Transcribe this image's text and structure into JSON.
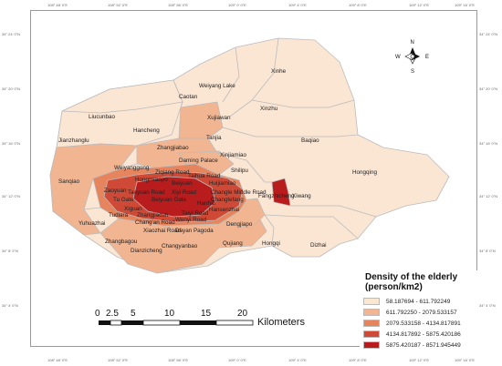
{
  "coordinates": {
    "top": [
      "108° 48' 0\"E",
      "108° 52' 0\"E",
      "108° 56' 0\"E",
      "109° 0' 0\"E",
      "109° 4' 0\"E",
      "109° 8' 0\"E",
      "109° 12' 0\"E",
      "109° 16' 0\"E"
    ],
    "bottom": [
      "108° 48' 0\"E",
      "108° 52' 0\"E",
      "108° 56' 0\"E",
      "109° 0' 0\"E",
      "109° 4' 0\"E",
      "109° 8' 0\"E",
      "109° 12' 0\"E",
      "109° 16' 0\"E"
    ],
    "left": [
      "34° 24' 0\"N",
      "34° 20' 0\"N",
      "34° 16' 0\"N",
      "34° 12' 0\"N",
      "34° 8' 0\"N",
      "34° 4' 0\"N"
    ],
    "right": [
      "34° 24' 0\"N",
      "34° 20' 0\"N",
      "34° 16' 0\"N",
      "34° 12' 0\"N",
      "34° 8' 0\"N",
      "34° 4' 0\"N"
    ]
  },
  "map": {
    "colors": {
      "c1": "#fbe6d4",
      "c2": "#f2b591",
      "c3": "#e5845d",
      "c4": "#cf4a36",
      "c5": "#b81c1c",
      "boundary": "#bbbbbb"
    },
    "labels": [
      {
        "text": "Xinhe"
      },
      {
        "text": "Weiyang Lake"
      },
      {
        "text": "Caotan"
      },
      {
        "text": "Xinzhu"
      },
      {
        "text": "Liucunbao"
      },
      {
        "text": "Xujiawan"
      },
      {
        "text": "Hancheng"
      },
      {
        "text": "Tanjia"
      },
      {
        "text": "Baqiao"
      },
      {
        "text": "Jianzhanglu"
      },
      {
        "text": "Zhangjiabao"
      },
      {
        "text": "Xinjiamiao"
      },
      {
        "text": "Hongqing"
      },
      {
        "text": "Daming Palace"
      },
      {
        "text": "Shilipu"
      },
      {
        "text": "Weiyanggong"
      },
      {
        "text": "Ziqiang Road"
      },
      {
        "text": "Taihua Road"
      },
      {
        "text": "Sanqiao"
      },
      {
        "text": "Hongmiaopo"
      },
      {
        "text": "Beiyuan"
      },
      {
        "text": "Huijiamiao"
      },
      {
        "text": "Zaoyuan"
      },
      {
        "text": "Xiyi Road"
      },
      {
        "text": "Taoyuan Road"
      },
      {
        "text": "Changle Middle Road"
      },
      {
        "text": "Fangzhicheng"
      },
      {
        "text": "Xiwang"
      },
      {
        "text": "Tu Gate"
      },
      {
        "text": "Beiyuan Gate"
      },
      {
        "text": "Changlefang"
      },
      {
        "text": "Hanhai"
      },
      {
        "text": "Xiguan"
      },
      {
        "text": "Zhangjiacun"
      },
      {
        "text": "Taiyi Road"
      },
      {
        "text": "Hansenzhai"
      },
      {
        "text": "Tudiara"
      },
      {
        "text": "Chang'an Road"
      },
      {
        "text": "Wenyi Road"
      },
      {
        "text": "Dengjiapo"
      },
      {
        "text": "Yuhuazhai"
      },
      {
        "text": "Xiaozhai Road"
      },
      {
        "text": "Dayan Pagoda"
      },
      {
        "text": "Zhangbagou"
      },
      {
        "text": "Qujiang"
      },
      {
        "text": "Hongqi"
      },
      {
        "text": "Dizhai"
      },
      {
        "text": "Changyanbao"
      },
      {
        "text": "Dianzicheng"
      }
    ]
  },
  "north_arrow": {
    "n": "N",
    "s": "S",
    "e": "E",
    "w": "W"
  },
  "scale_bar": {
    "ticks": [
      "0",
      "2.5",
      "5",
      "10",
      "15",
      "20"
    ],
    "unit": "Kilometers"
  },
  "legend": {
    "title_line1": "Density of the elderly",
    "title_line2": "(person/km2)",
    "items": [
      {
        "label": "58.187694 - 611.792249",
        "color": "#fbe6d4"
      },
      {
        "label": "611.792250 - 2079.533157",
        "color": "#f2b591"
      },
      {
        "label": "2079.533158 - 4134.817891",
        "color": "#e5845d"
      },
      {
        "label": "4134.817892 - 5875.420186",
        "color": "#cf4a36"
      },
      {
        "label": "5875.420187 - 8571.945449",
        "color": "#b81c1c"
      }
    ]
  }
}
